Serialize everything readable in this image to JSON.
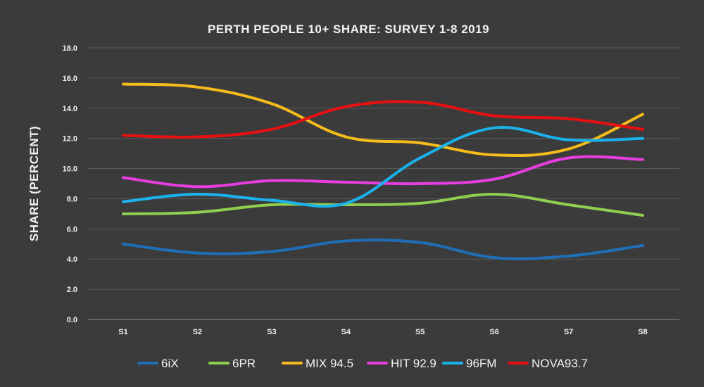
{
  "chart_data": {
    "type": "line",
    "title": "PERTH PEOPLE 10+ SHARE: SURVEY 1-8 2019",
    "xlabel": "",
    "ylabel": "SHARE (PERCENT)",
    "ylim": [
      0,
      18
    ],
    "yticks": [
      "0.0",
      "2.0",
      "4.0",
      "6.0",
      "8.0",
      "10.0",
      "12.0",
      "14.0",
      "16.0",
      "18.0"
    ],
    "ytick_values": [
      0,
      2,
      4,
      6,
      8,
      10,
      12,
      14,
      16,
      18
    ],
    "grid": true,
    "legend_position": "bottom",
    "categories": [
      "S1",
      "S2",
      "S3",
      "S4",
      "S5",
      "S6",
      "S7",
      "S8"
    ],
    "series": [
      {
        "name": "6iX",
        "color": "#1f6fb8",
        "values": [
          5.0,
          4.4,
          4.5,
          5.2,
          5.1,
          4.1,
          4.2,
          4.9
        ]
      },
      {
        "name": "6PR",
        "color": "#8fcf4f",
        "values": [
          7.0,
          7.1,
          7.6,
          7.6,
          7.7,
          8.3,
          7.6,
          6.9
        ]
      },
      {
        "name": "MIX 94.5",
        "color": "#f5bc1c",
        "values": [
          15.6,
          15.4,
          14.3,
          12.1,
          11.7,
          10.9,
          11.3,
          13.6
        ]
      },
      {
        "name": "HIT 92.9",
        "color": "#e83de0",
        "values": [
          9.4,
          8.8,
          9.2,
          9.1,
          9.0,
          9.3,
          10.7,
          10.6
        ]
      },
      {
        "name": "96FM",
        "color": "#1ab2ec",
        "values": [
          7.8,
          8.3,
          7.9,
          7.7,
          10.7,
          12.7,
          11.9,
          12.0
        ]
      },
      {
        "name": "NOVA93.7",
        "color": "#e81010",
        "values": [
          12.2,
          12.1,
          12.6,
          14.1,
          14.4,
          13.5,
          13.3,
          12.6
        ]
      }
    ]
  }
}
